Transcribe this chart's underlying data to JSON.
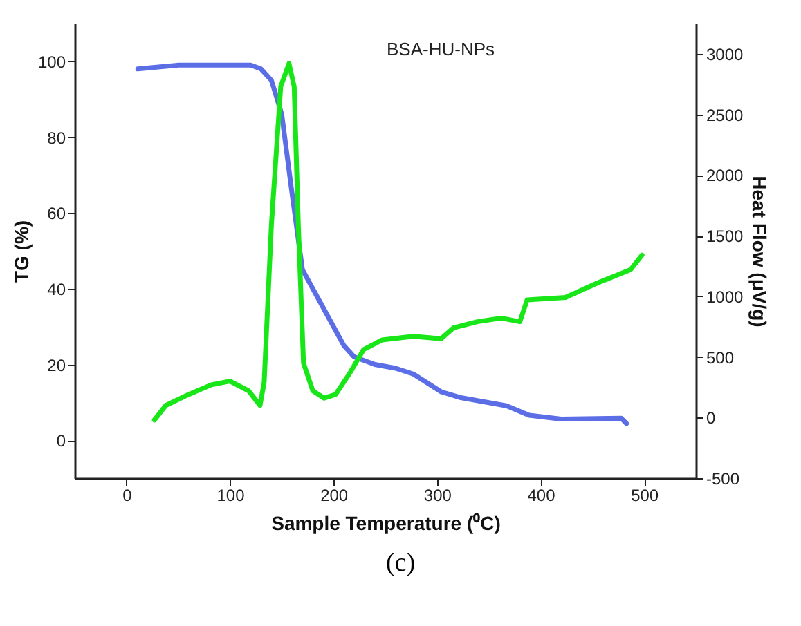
{
  "chart_data": {
    "type": "line",
    "title": "BSA-HU-NPs",
    "xlabel": "Sample Temperature (⁰C)",
    "ylabel": "TG (%)",
    "y2label": "Heat Flow (μV/g)",
    "xlim": [
      -50,
      550
    ],
    "xticks": [
      0,
      100,
      200,
      300,
      400,
      500
    ],
    "ylim": [
      -10,
      110
    ],
    "yticks": [
      0,
      20,
      40,
      60,
      80,
      100
    ],
    "y2lim": [
      -500,
      3250
    ],
    "y2ticks": [
      -500,
      0,
      500,
      1000,
      1500,
      2000,
      2500,
      3000
    ],
    "series": [
      {
        "color": "#5b6ee6",
        "x": [
          11,
          50,
          100,
          120,
          130,
          140,
          150,
          160,
          170,
          190,
          210,
          220,
          240,
          260,
          277,
          304,
          322,
          367,
          389,
          420,
          478,
          483
        ],
        "values": [
          98,
          99,
          99,
          99,
          98,
          95,
          86,
          65,
          45,
          35,
          25,
          22,
          20,
          19,
          17.5,
          12.8,
          11.3,
          9.1,
          6.6,
          5.6,
          5.8,
          4.4
        ]
      },
      {
        "axis": "y2",
        "color": "#19e619",
        "x": [
          27,
          38,
          60,
          82,
          100,
          118,
          129,
          133,
          140,
          149,
          157,
          162,
          166,
          171,
          180,
          191,
          202,
          216,
          229,
          247,
          277,
          304,
          316,
          339,
          362,
          380,
          387,
          424,
          455,
          487,
          498
        ],
        "values": [
          -20,
          100,
          190,
          270,
          300,
          220,
          100,
          290,
          1590,
          2730,
          2920,
          2730,
          1590,
          450,
          220,
          160,
          190,
          370,
          560,
          640,
          670,
          650,
          740,
          790,
          820,
          790,
          970,
          990,
          1110,
          1220,
          1340
        ]
      }
    ],
    "legend": false,
    "grid": false,
    "annotations": [
      "(c)"
    ]
  }
}
